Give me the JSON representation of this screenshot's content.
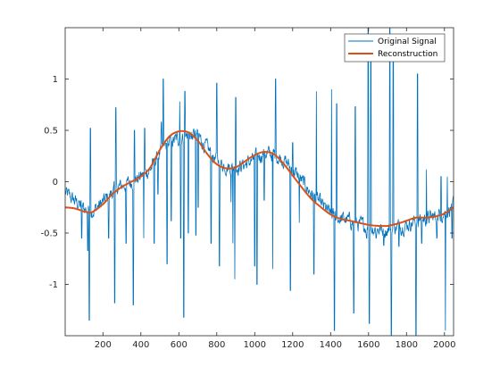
{
  "chart_data": {
    "type": "line",
    "title": "",
    "xlabel": "",
    "ylabel": "",
    "xlim": [
      1,
      2048
    ],
    "ylim": [
      -1.5,
      1.5
    ],
    "xticks": [
      200,
      400,
      600,
      800,
      1000,
      1200,
      1400,
      1600,
      1800,
      2000
    ],
    "yticks": [
      -1,
      -0.5,
      0,
      0.5,
      1
    ],
    "grid": false,
    "box": true,
    "legend_location": "top-right",
    "series": [
      {
        "name": "Original Signal",
        "color": "#0072BD",
        "style": "noisy-with-spikes",
        "trend": [
          [
            1,
            -0.11
          ],
          [
            60,
            -0.2
          ],
          [
            100,
            -0.26
          ],
          [
            150,
            -0.28
          ],
          [
            200,
            -0.2
          ],
          [
            260,
            -0.08
          ],
          [
            300,
            -0.04
          ],
          [
            350,
            0.0
          ],
          [
            400,
            0.05
          ],
          [
            450,
            0.12
          ],
          [
            500,
            0.28
          ],
          [
            550,
            0.38
          ],
          [
            600,
            0.42
          ],
          [
            650,
            0.46
          ],
          [
            700,
            0.45
          ],
          [
            750,
            0.32
          ],
          [
            800,
            0.2
          ],
          [
            850,
            0.15
          ],
          [
            900,
            0.14
          ],
          [
            950,
            0.17
          ],
          [
            1000,
            0.22
          ],
          [
            1050,
            0.28
          ],
          [
            1100,
            0.26
          ],
          [
            1150,
            0.22
          ],
          [
            1200,
            0.12
          ],
          [
            1250,
            0.0
          ],
          [
            1300,
            -0.12
          ],
          [
            1350,
            -0.22
          ],
          [
            1400,
            -0.32
          ],
          [
            1450,
            -0.36
          ],
          [
            1500,
            -0.38
          ],
          [
            1550,
            -0.42
          ],
          [
            1600,
            -0.44
          ],
          [
            1650,
            -0.46
          ],
          [
            1700,
            -0.47
          ],
          [
            1750,
            -0.44
          ],
          [
            1800,
            -0.42
          ],
          [
            1850,
            -0.38
          ],
          [
            1900,
            -0.36
          ],
          [
            1950,
            -0.34
          ],
          [
            2000,
            -0.3
          ],
          [
            2048,
            -0.24
          ]
        ],
        "spikes": [
          [
            88,
            -0.55
          ],
          [
            120,
            -0.67
          ],
          [
            128,
            -1.35
          ],
          [
            134,
            0.52
          ],
          [
            230,
            -0.55
          ],
          [
            262,
            -1.18
          ],
          [
            268,
            0.72
          ],
          [
            322,
            -0.6
          ],
          [
            360,
            -1.2
          ],
          [
            366,
            0.5
          ],
          [
            415,
            -0.55
          ],
          [
            420,
            0.52
          ],
          [
            470,
            -0.6
          ],
          [
            490,
            -0.12
          ],
          [
            508,
            0.58
          ],
          [
            518,
            1.0
          ],
          [
            538,
            -0.8
          ],
          [
            560,
            -0.38
          ],
          [
            605,
            0.78
          ],
          [
            610,
            -0.55
          ],
          [
            626,
            -1.32
          ],
          [
            632,
            0.88
          ],
          [
            650,
            -0.5
          ],
          [
            668,
            0.42
          ],
          [
            690,
            -0.52
          ],
          [
            702,
            -0.25
          ],
          [
            770,
            -0.6
          ],
          [
            800,
            0.96
          ],
          [
            814,
            -0.82
          ],
          [
            875,
            -0.2
          ],
          [
            885,
            -0.6
          ],
          [
            895,
            -0.95
          ],
          [
            900,
            0.82
          ],
          [
            1000,
            -0.82
          ],
          [
            1012,
            -1.0
          ],
          [
            1050,
            -0.18
          ],
          [
            1095,
            -0.85
          ],
          [
            1110,
            1.0
          ],
          [
            1188,
            -1.06
          ],
          [
            1200,
            0.38
          ],
          [
            1235,
            -0.4
          ],
          [
            1312,
            -0.9
          ],
          [
            1325,
            0.88
          ],
          [
            1405,
            0.9
          ],
          [
            1420,
            -1.45
          ],
          [
            1432,
            0.76
          ],
          [
            1522,
            -1.28
          ],
          [
            1530,
            0.73
          ],
          [
            1590,
            -0.55
          ],
          [
            1598,
            1.55
          ],
          [
            1604,
            -1.38
          ],
          [
            1612,
            1.28
          ],
          [
            1640,
            -0.55
          ],
          [
            1680,
            -0.62
          ],
          [
            1712,
            1.5
          ],
          [
            1720,
            -1.5
          ],
          [
            1730,
            1.4
          ],
          [
            1760,
            -0.63
          ],
          [
            1850,
            -1.5
          ],
          [
            1858,
            1.05
          ],
          [
            1880,
            -0.6
          ],
          [
            1905,
            0.12
          ],
          [
            1960,
            -0.55
          ],
          [
            1982,
            0.05
          ],
          [
            2005,
            -1.45
          ],
          [
            2015,
            0.05
          ],
          [
            2040,
            -0.55
          ]
        ],
        "noise_amplitude": 0.07
      },
      {
        "name": "Reconstruction",
        "color": "#D95319",
        "style": "smooth",
        "x": [
          1,
          50,
          100,
          130,
          150,
          200,
          250,
          300,
          350,
          400,
          450,
          500,
          550,
          600,
          650,
          700,
          750,
          800,
          850,
          900,
          950,
          1000,
          1050,
          1100,
          1150,
          1200,
          1250,
          1300,
          1350,
          1400,
          1450,
          1500,
          1550,
          1600,
          1650,
          1700,
          1750,
          1800,
          1850,
          1900,
          1950,
          2000,
          2048
        ],
        "y": [
          -0.25,
          -0.26,
          -0.29,
          -0.3,
          -0.29,
          -0.22,
          -0.12,
          -0.05,
          0.0,
          0.05,
          0.14,
          0.31,
          0.44,
          0.49,
          0.48,
          0.4,
          0.27,
          0.17,
          0.13,
          0.14,
          0.2,
          0.26,
          0.29,
          0.27,
          0.18,
          0.06,
          -0.06,
          -0.17,
          -0.25,
          -0.32,
          -0.36,
          -0.38,
          -0.4,
          -0.42,
          -0.43,
          -0.43,
          -0.41,
          -0.38,
          -0.35,
          -0.35,
          -0.34,
          -0.31,
          -0.25
        ]
      }
    ]
  }
}
